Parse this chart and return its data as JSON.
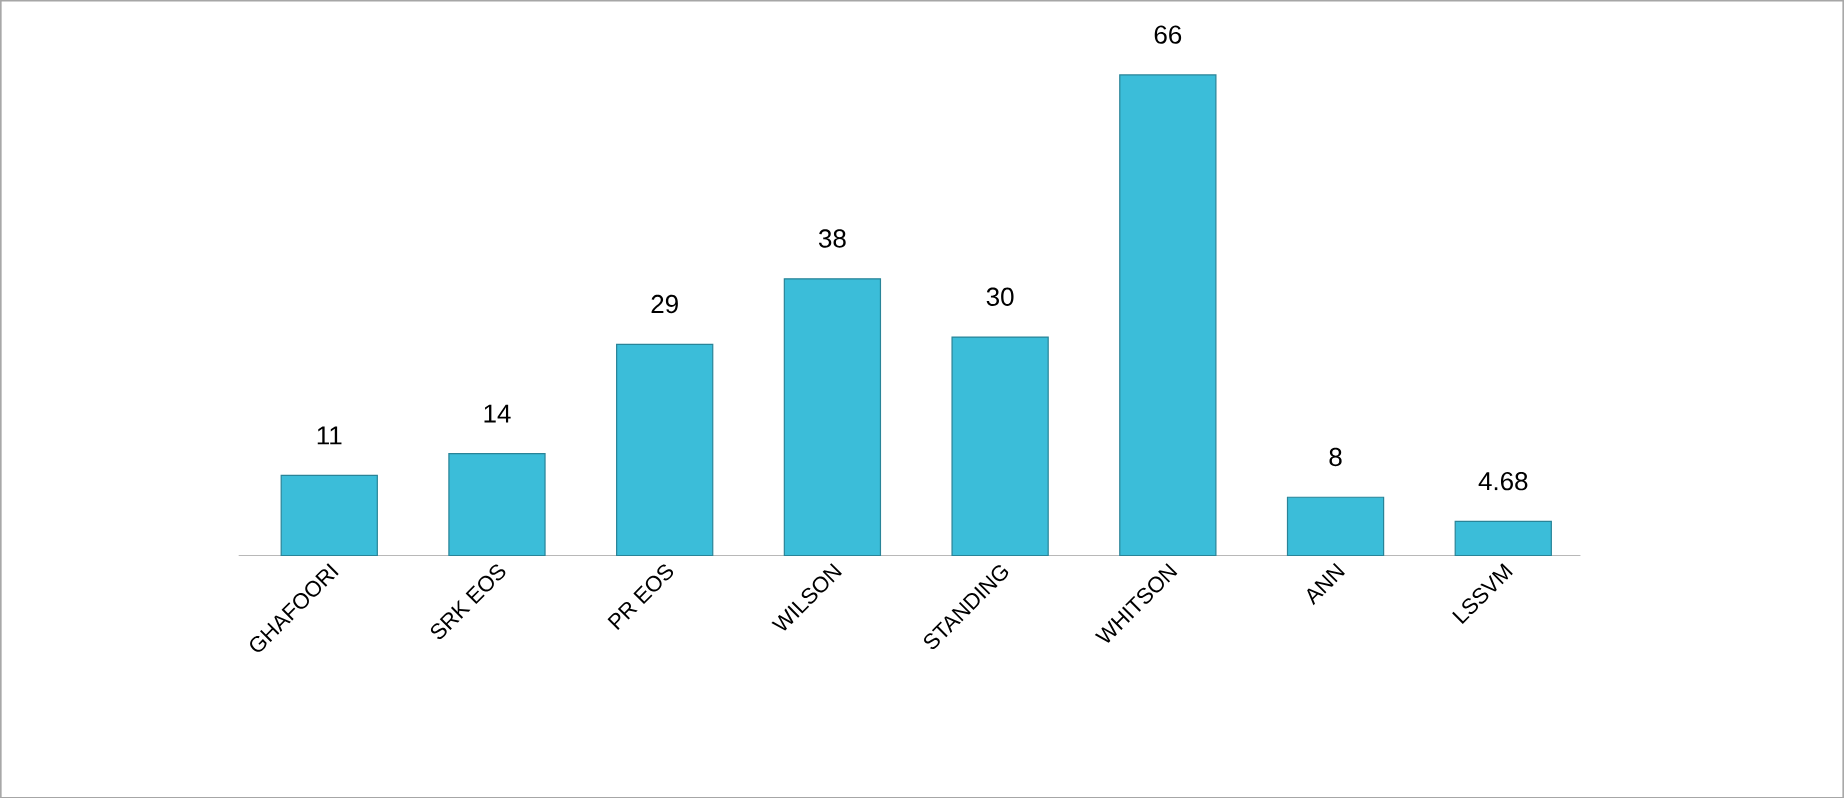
{
  "chart_data": {
    "type": "bar",
    "categories": [
      "GHAFOORI",
      "SRK EOS",
      "PR EOS",
      "WILSON",
      "STANDING",
      "WHITSON",
      "ANN",
      "LSSVM"
    ],
    "values": [
      11,
      14,
      29,
      38,
      30,
      66,
      8,
      4.68
    ],
    "color": "#3bbdd9",
    "data_labels": true
  }
}
